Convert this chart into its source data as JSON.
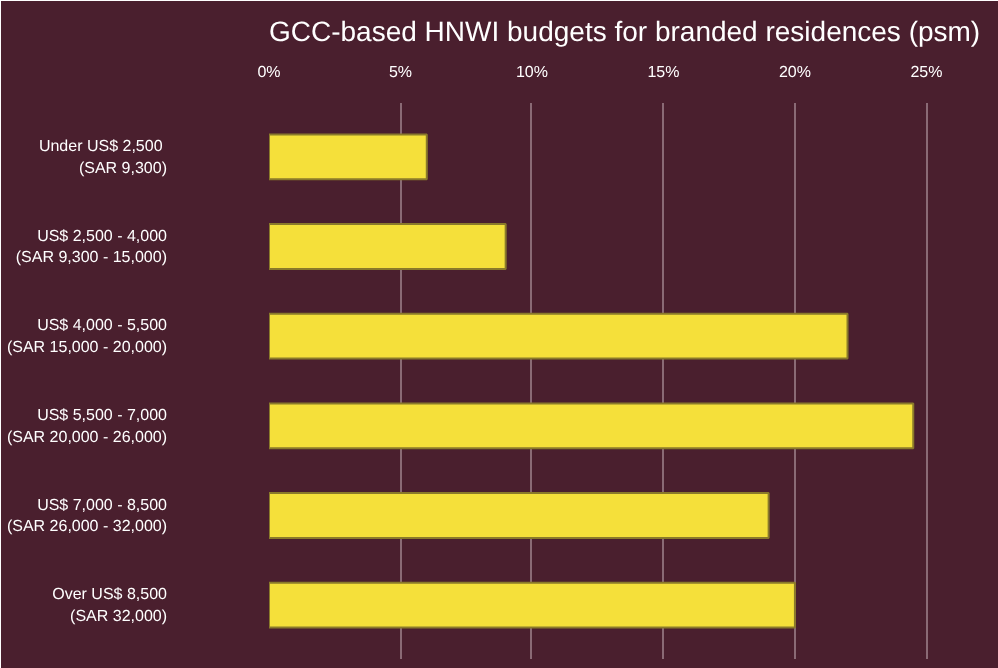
{
  "chart_data": {
    "type": "bar",
    "orientation": "horizontal",
    "title": "GCC-based HNWI budgets for branded residences (psm)",
    "categories": [
      "Under  US$ 2,500\n(SAR 9,300)",
      "US$ 2,500 - 4,000\n(SAR 9,300 - 15,000)",
      "US$ 4,000 - 5,500\n(SAR 15,000 - 20,000)",
      "US$ 5,500 - 7,000\n(SAR 20,000 - 26,000)",
      "US$ 7,000 - 8,500\n(SAR 26,000 - 32,000)",
      "Over US$ 8,500\n(SAR 32,000)"
    ],
    "values": [
      6,
      9,
      22,
      24.5,
      19,
      20
    ],
    "color": "#f5e03a",
    "xlim": [
      0,
      27
    ],
    "xticks": [
      {
        "value": 0,
        "label": "0%"
      },
      {
        "value": 5,
        "label": "5%"
      },
      {
        "value": 10,
        "label": "10%"
      },
      {
        "value": 15,
        "label": "15%"
      },
      {
        "value": 20,
        "label": "20%"
      },
      {
        "value": 25,
        "label": "25%"
      }
    ],
    "grid": "x"
  }
}
